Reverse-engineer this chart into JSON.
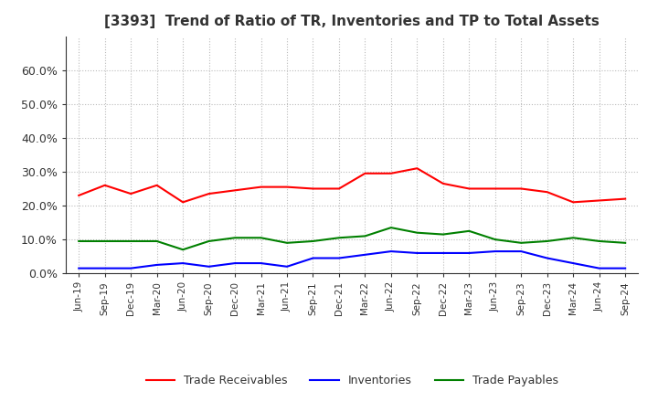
{
  "title": "[3393]  Trend of Ratio of TR, Inventories and TP to Total Assets",
  "x_labels": [
    "Jun-19",
    "Sep-19",
    "Dec-19",
    "Mar-20",
    "Jun-20",
    "Sep-20",
    "Dec-20",
    "Mar-21",
    "Jun-21",
    "Sep-21",
    "Dec-21",
    "Mar-22",
    "Jun-22",
    "Sep-22",
    "Dec-22",
    "Mar-23",
    "Jun-23",
    "Sep-23",
    "Dec-23",
    "Mar-24",
    "Jun-24",
    "Sep-24"
  ],
  "trade_receivables": [
    23.0,
    26.0,
    23.5,
    26.0,
    21.0,
    23.5,
    24.5,
    25.5,
    25.5,
    25.0,
    25.0,
    29.5,
    29.5,
    31.0,
    26.5,
    25.0,
    25.0,
    25.0,
    24.0,
    21.0,
    21.5,
    22.0
  ],
  "inventories": [
    1.5,
    1.5,
    1.5,
    2.5,
    3.0,
    2.0,
    3.0,
    3.0,
    2.0,
    4.5,
    4.5,
    5.5,
    6.5,
    6.0,
    6.0,
    6.0,
    6.5,
    6.5,
    4.5,
    3.0,
    1.5,
    1.5
  ],
  "trade_payables": [
    9.5,
    9.5,
    9.5,
    9.5,
    7.0,
    9.5,
    10.5,
    10.5,
    9.0,
    9.5,
    10.5,
    11.0,
    13.5,
    12.0,
    11.5,
    12.5,
    10.0,
    9.0,
    9.5,
    10.5,
    9.5,
    9.0
  ],
  "tr_color": "#FF0000",
  "inv_color": "#0000FF",
  "tp_color": "#008000",
  "ylim": [
    0,
    70
  ],
  "yticks": [
    0,
    10,
    20,
    30,
    40,
    50,
    60
  ],
  "ytick_labels": [
    "0.0%",
    "10.0%",
    "20.0%",
    "30.0%",
    "40.0%",
    "50.0%",
    "60.0%"
  ],
  "background_color": "#FFFFFF",
  "plot_bg_color": "#FFFFFF",
  "grid_color": "#AAAAAA",
  "legend_labels": [
    "Trade Receivables",
    "Inventories",
    "Trade Payables"
  ],
  "title_color": "#333333"
}
